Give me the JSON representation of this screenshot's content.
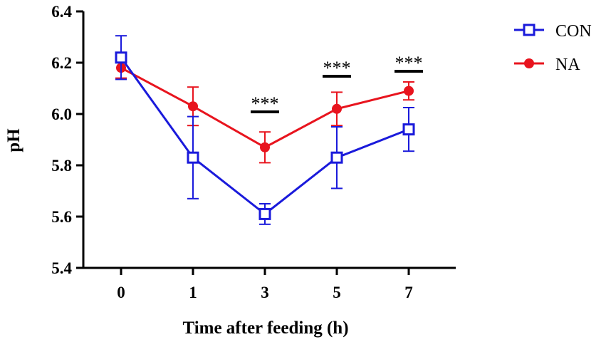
{
  "chart_data": {
    "type": "line",
    "title": "",
    "xlabel": "Time after feeding (h)",
    "ylabel": "pH",
    "categories": [
      "0",
      "1",
      "3",
      "5",
      "7"
    ],
    "ylim": [
      5.4,
      6.4
    ],
    "yticks": [
      "5.4",
      "5.6",
      "5.8",
      "6.0",
      "6.2",
      "6.4"
    ],
    "series": [
      {
        "name": "CON",
        "color": "#1a1adb",
        "marker": "open-square",
        "values": [
          6.22,
          5.83,
          5.61,
          5.83,
          5.94
        ],
        "errors": [
          0.085,
          0.16,
          0.04,
          0.12,
          0.085
        ]
      },
      {
        "name": "NA",
        "color": "#e8141e",
        "marker": "filled-circle",
        "values": [
          6.18,
          6.03,
          5.87,
          6.02,
          6.09
        ],
        "errors": [
          0.04,
          0.075,
          0.06,
          0.065,
          0.035
        ]
      }
    ],
    "annotations": [
      {
        "category": "3",
        "text": "***"
      },
      {
        "category": "5",
        "text": "***"
      },
      {
        "category": "7",
        "text": "***"
      }
    ],
    "grid": false,
    "legend_position": "top-right"
  }
}
